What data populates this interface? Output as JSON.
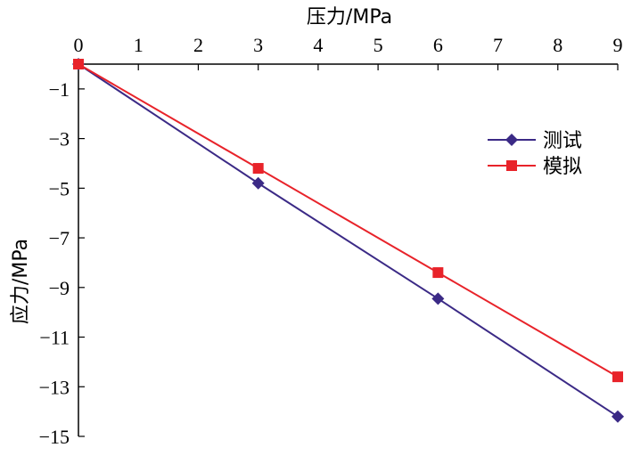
{
  "chart_data": {
    "type": "line",
    "xlabel": "压力/MPa",
    "ylabel": "应力/MPa",
    "xlim": [
      0,
      9
    ],
    "ylim": [
      -15,
      0
    ],
    "x_ticks": [
      "0",
      "1",
      "2",
      "3",
      "4",
      "5",
      "6",
      "7",
      "8",
      "9"
    ],
    "y_ticks": [
      "-1",
      "-3",
      "-5",
      "-7",
      "-9",
      "-11",
      "-13",
      "-15"
    ],
    "x_axis_position": "top",
    "grid": false,
    "legend_position": "right",
    "series": [
      {
        "name": "测试",
        "marker": "diamond",
        "color": "#3b2a86",
        "x": [
          0,
          3,
          6,
          9
        ],
        "y": [
          0,
          -4.8,
          -9.45,
          -14.2
        ]
      },
      {
        "name": "模拟",
        "marker": "square",
        "color": "#e8232a",
        "x": [
          0,
          3,
          6,
          9
        ],
        "y": [
          0,
          -4.2,
          -8.4,
          -12.6
        ]
      }
    ]
  }
}
